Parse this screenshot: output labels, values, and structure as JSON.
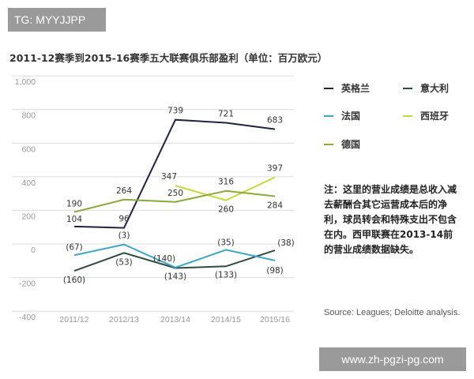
{
  "watermark_top": "TG: MYYJJPP",
  "watermark_bottom": "www.zh-pgzi-pg.com",
  "chart_data": {
    "type": "line",
    "title": "2011-12赛季到2015-16赛季五大联赛俱乐部盈利（单位：百万欧元）",
    "categories": [
      "2011/12",
      "2012/13",
      "2013/14",
      "2014/15",
      "2015/16"
    ],
    "y_ticks": [
      "1,000",
      "800",
      "600",
      "400",
      "200",
      "0",
      "-200",
      "-400"
    ],
    "ylim": [
      -400,
      1000
    ],
    "grid": true,
    "legend_placement": "right",
    "series": [
      {
        "name": "英格兰",
        "color": "#1f2240",
        "values": [
          104,
          96,
          739,
          721,
          683
        ],
        "labels": [
          "104",
          "96",
          "739",
          "721",
          "683"
        ]
      },
      {
        "name": "意大利",
        "color": "#2f4b3c",
        "values": [
          -160,
          -53,
          -143,
          -133,
          -38
        ],
        "labels": [
          "(160)",
          "(53)",
          "(143)",
          "(133)",
          "(38)"
        ]
      },
      {
        "name": "法国",
        "color": "#3aa6c8",
        "values": [
          -67,
          -3,
          -140,
          -35,
          -98
        ],
        "labels": [
          "(67)",
          "(3)",
          "(140)",
          "(35)",
          "(98)"
        ]
      },
      {
        "name": "西班牙",
        "color": "#c5da3a",
        "values": [
          null,
          null,
          347,
          260,
          397
        ],
        "labels": [
          "",
          "",
          "347",
          "260",
          "397"
        ]
      },
      {
        "name": "德国",
        "color": "#8aab3a",
        "values": [
          190,
          264,
          250,
          316,
          284
        ],
        "labels": [
          "190",
          "264",
          "250",
          "316",
          "284"
        ]
      }
    ]
  },
  "note": "注：这里的营业成绩是总收入减去薪酬合其它运营成本后的净利，球员转会和特殊支出不包含在内。西甲联赛在2013-14前的营业成绩数据缺失。",
  "source": "Source: Leagues; Deloitte analysis."
}
